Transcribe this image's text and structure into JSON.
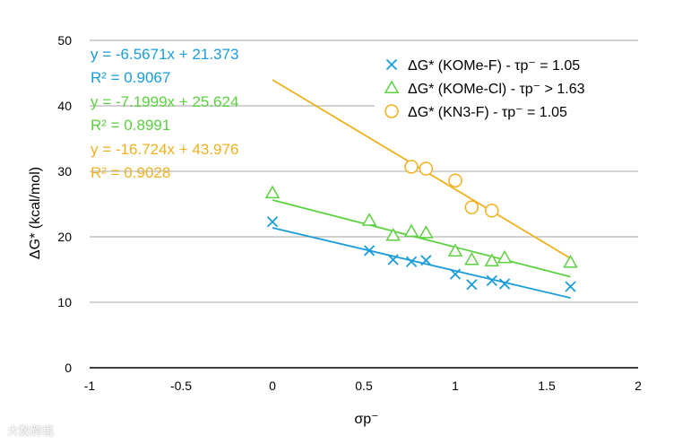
{
  "chart_data": {
    "type": "scatter",
    "title": "",
    "xlabel": "σp⁻",
    "ylabel": "ΔG* (kcal/mol)",
    "xlim": [
      -1,
      2
    ],
    "ylim": [
      0,
      50
    ],
    "xticks": [
      -1,
      -0.5,
      0,
      0.5,
      1,
      1.5,
      2
    ],
    "xtick_labels": [
      "-1",
      "-0.5",
      "0",
      "0.5",
      "1",
      "1.5",
      "2"
    ],
    "yticks": [
      0,
      10,
      20,
      30,
      40,
      50
    ],
    "ytick_labels": [
      "0",
      "10",
      "20",
      "30",
      "40",
      "50"
    ],
    "grid": "horizontal",
    "legend_position": "top-right",
    "series": [
      {
        "name": "ΔG* (KOMe-F) - τp⁻ = 1.05",
        "color": "#1a9cd8",
        "marker": "x",
        "x": [
          0,
          0.53,
          0.66,
          0.76,
          0.84,
          1.0,
          1.09,
          1.2,
          1.27,
          1.63
        ],
        "y": [
          22.3,
          17.9,
          16.5,
          16.2,
          16.4,
          14.3,
          12.7,
          13.3,
          12.8,
          12.4
        ],
        "trendline": {
          "slope": -6.5671,
          "intercept": 21.373,
          "x_range": [
            0,
            1.63
          ]
        },
        "equation": "y = -6.5671x + 21.373",
        "r2": "R² = 0.9067"
      },
      {
        "name": "ΔG* (KOMe-Cl) - τp⁻ > 1.63",
        "color": "#5cd13f",
        "marker": "triangle",
        "x": [
          0,
          0.53,
          0.66,
          0.76,
          0.84,
          1.0,
          1.09,
          1.2,
          1.27,
          1.63
        ],
        "y": [
          26.7,
          22.5,
          20.2,
          20.8,
          20.6,
          17.8,
          16.5,
          16.3,
          16.8,
          16.1
        ],
        "trendline": {
          "slope": -7.1999,
          "intercept": 25.624,
          "x_range": [
            0,
            1.63
          ]
        },
        "equation": "y = -7.1999x + 25.624",
        "r2": "R² = 0.8991"
      },
      {
        "name": "ΔG* (KN3-F) - τp⁻ = 1.05",
        "color": "#f0b020",
        "marker": "circle",
        "x": [
          0.76,
          0.84,
          1.0,
          1.09,
          1.2
        ],
        "y": [
          30.7,
          30.4,
          28.6,
          24.5,
          24.0
        ],
        "trendline": {
          "slope": -16.724,
          "intercept": 43.976,
          "x_range": [
            0,
            1.63
          ]
        },
        "equation": "y = -16.724x + 43.976",
        "r2": "R² = 0.9028"
      }
    ]
  },
  "watermark": "大数跨境"
}
